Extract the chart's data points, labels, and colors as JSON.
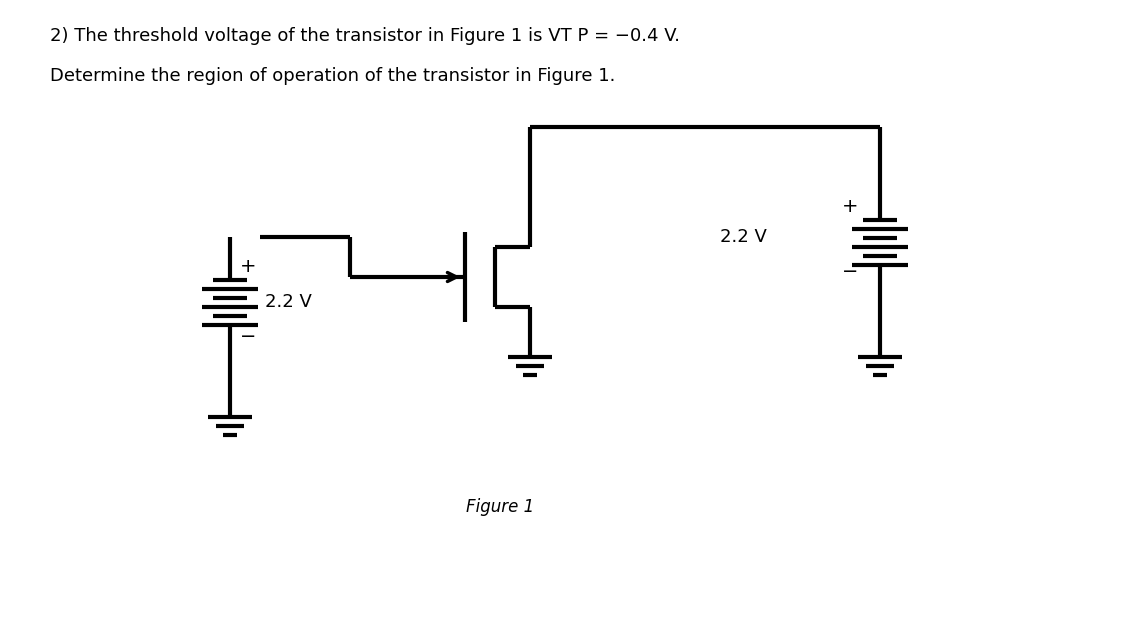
{
  "title_line1": "2) The threshold voltage of the transistor in Figure 1 is VT P = −0.4 V.",
  "title_line2": "Determine the region of operation of the transistor in Figure 1.",
  "figure_label": "Figure 1",
  "voltage_label": "2.2 V",
  "bg_color": "#ffffff",
  "line_color": "#000000",
  "line_width": 2.5,
  "font_size_text": 13,
  "font_size_label": 12
}
